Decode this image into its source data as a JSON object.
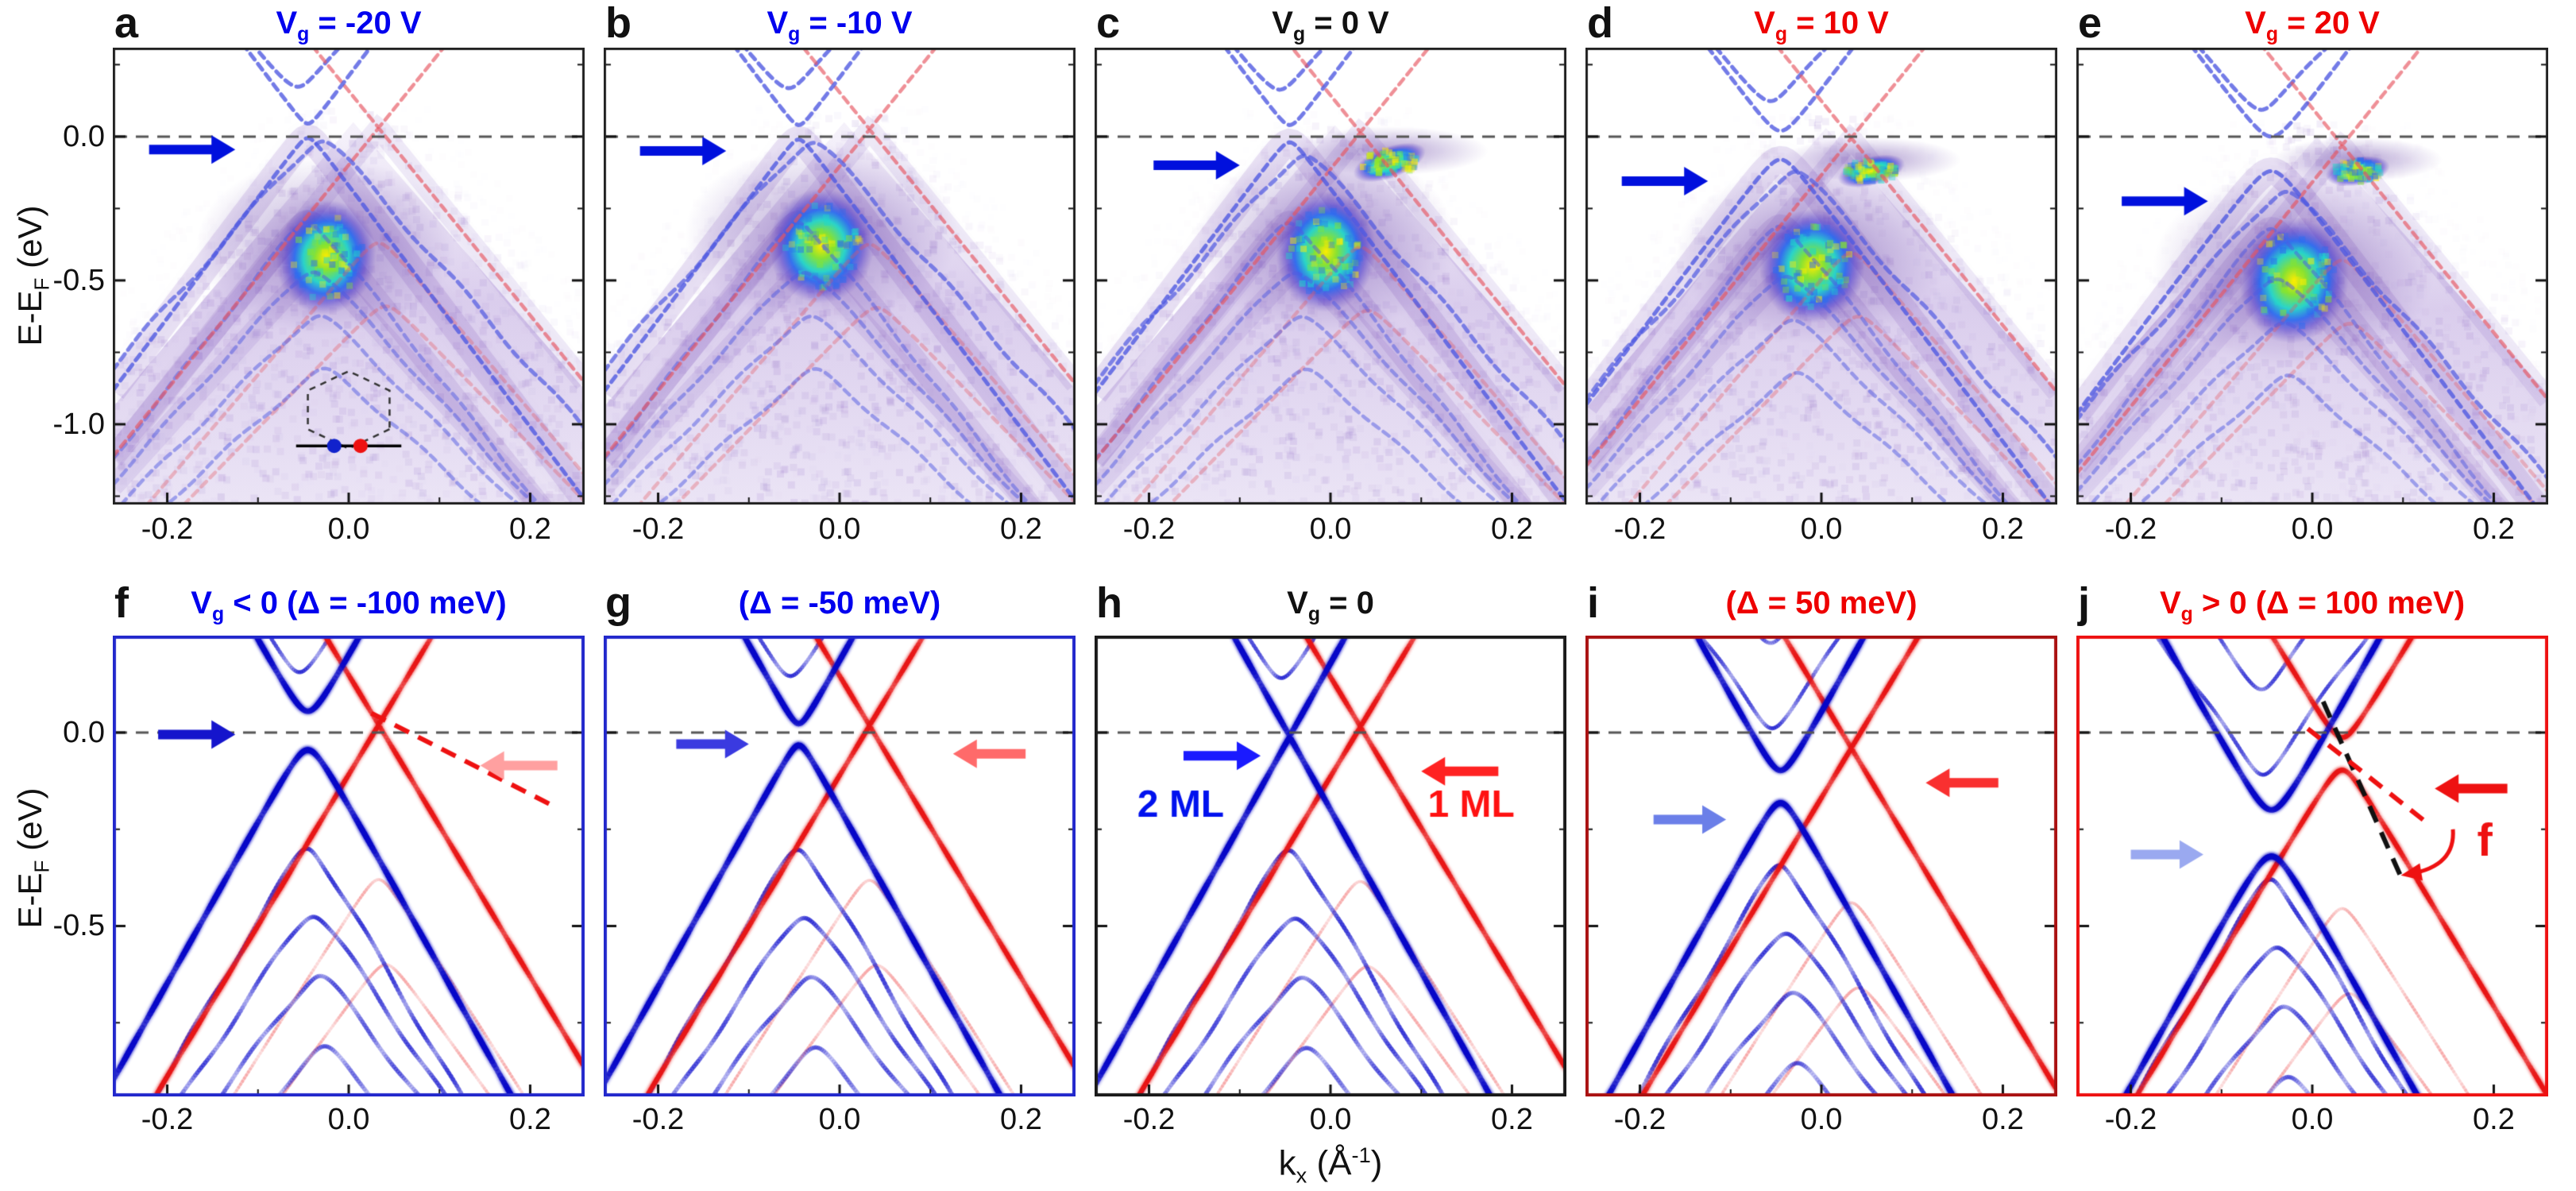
{
  "figure": {
    "y_axis_label": {
      "main": "E-E",
      "sub": "F",
      "rest": " (eV)"
    },
    "x_axis_label": {
      "main": "k",
      "sub": "x",
      "rest1": " (Å",
      "sup": "-1",
      "rest2": ")"
    },
    "x_tick_labels": [
      "-0.2",
      "0.0",
      "0.2"
    ],
    "x_tick_values": [
      -0.2,
      0.0,
      0.2
    ],
    "top_row_y_ticks": {
      "labels": [
        "0.0",
        "-0.5",
        "-1.0"
      ],
      "values": [
        0.0,
        -0.5,
        -1.0
      ]
    },
    "bottom_row_y_ticks": {
      "labels": [
        "0.0",
        "-0.5"
      ],
      "values": [
        0.0,
        -0.5
      ]
    }
  },
  "chart_data": {
    "type": "heatmap",
    "description": "ARPES spectra (top row a-e, measured at gate voltages) and simulated spectral functions (bottom row f-j) of 1ML/2ML Dirac bands vs kx; energy axis E-EF (eV).",
    "x_range": [
      -0.26,
      0.26
    ],
    "top_e_range": [
      0.309,
      -1.279
    ],
    "bottom_e_range": [
      0.2505,
      -0.9405
    ],
    "intensity_colormap": [
      "#ffffff",
      "#9d7fd4",
      "#4433cc",
      "#00ccee",
      "#55dd22",
      "#ffee00"
    ],
    "model": {
      "blue_k0": -0.045,
      "blue_v": 4.2,
      "red_k0": 0.033,
      "red_v": 3.9,
      "blue_valence_subbands": [
        {
          "dE": -0.3,
          "v": 4.0
        },
        {
          "dE": -0.47,
          "v": 3.5
        },
        {
          "dE": -0.63,
          "v": 3.15
        },
        {
          "dE": -0.82,
          "v": 2.85
        }
      ],
      "blue_conduction_subbands": [
        {
          "dE": 0.16,
          "v": 3.35
        },
        {
          "dE": 0.38,
          "v": 3.2
        }
      ],
      "red_valence_subbands": [
        {
          "dE": -0.4,
          "v": 3.7
        },
        {
          "dE": -0.62,
          "v": 3.25
        }
      ]
    },
    "panels": [
      {
        "id": "a",
        "row": 0,
        "kind": "arpes",
        "letter": "a",
        "title": {
          "color": "#0000ee",
          "segments": [
            {
              "t": "V",
              "b": true
            },
            {
              "t": "g",
              "sub": true,
              "b": true
            },
            {
              "t": " = -20 V",
              "b": true
            }
          ]
        },
        "frame": {
          "color": "#222222",
          "width": 3
        },
        "blue": {
          "E0": 0.02,
          "g": 0.025
        },
        "red": {
          "E0": 0.03,
          "g": 0.0
        },
        "pointer_band": {
          "apexE": -0.01,
          "k0": -0.03,
          "v": 3.6
        },
        "haze": {
          "apexE": 0.0
        },
        "hotspots": [
          {
            "k": -0.025,
            "E": -0.42,
            "rk": 0.055,
            "rE": 0.2,
            "rot": 10
          }
        ],
        "arrows": [
          {
            "dir": 1,
            "tipK": -0.125,
            "E": -0.045,
            "color": "#0010dd",
            "lenK": 0.095
          }
        ],
        "annotations": [],
        "inset": {
          "center": [
            0.0,
            -0.95
          ],
          "rk": 0.052,
          "lineE": -1.075,
          "lineK": [
            -0.058,
            0.058
          ],
          "dots": [
            {
              "k": -0.016,
              "color": "#1122cc"
            },
            {
              "k": 0.013,
              "color": "#ee1111"
            }
          ]
        }
      },
      {
        "id": "b",
        "row": 0,
        "kind": "arpes",
        "letter": "b",
        "title": {
          "color": "#0000ee",
          "segments": [
            {
              "t": "V",
              "b": true
            },
            {
              "t": "g",
              "sub": true,
              "b": true
            },
            {
              "t": " = -10 V",
              "b": true
            }
          ]
        },
        "frame": {
          "color": "#222222",
          "width": 3
        },
        "blue": {
          "E0": 0.015,
          "g": 0.025
        },
        "red": {
          "E0": 0.025,
          "g": 0.0
        },
        "pointer_band": {
          "apexE": -0.015,
          "k0": -0.03,
          "v": 3.6
        },
        "haze": {
          "apexE": 0.0
        },
        "hotspots": [
          {
            "k": -0.02,
            "E": -0.38,
            "rk": 0.058,
            "rE": 0.2,
            "rot": 6
          }
        ],
        "arrows": [
          {
            "dir": 1,
            "tipK": -0.125,
            "E": -0.05,
            "color": "#0010dd",
            "lenK": 0.095
          }
        ],
        "annotations": []
      },
      {
        "id": "c",
        "row": 0,
        "kind": "arpes",
        "letter": "c",
        "title": {
          "color": "#111111",
          "segments": [
            {
              "t": "V",
              "b": true
            },
            {
              "t": "g",
              "sub": true,
              "b": true
            },
            {
              "t": " = 0 V",
              "b": true
            }
          ]
        },
        "frame": {
          "color": "#222222",
          "width": 3
        },
        "blue": {
          "E0": 0.01,
          "g": 0.03
        },
        "red": {
          "E0": 0.015,
          "g": 0.0
        },
        "pointer_band": {
          "apexE": -0.06,
          "k0": -0.03,
          "v": 3.6
        },
        "haze": {
          "apexE": -0.01
        },
        "hotspots": [
          {
            "k": -0.005,
            "E": -0.4,
            "rk": 0.055,
            "rE": 0.21,
            "rot": 4
          },
          {
            "k": 0.065,
            "E": -0.09,
            "rk": 0.042,
            "rE": 0.055,
            "rot": -20
          }
        ],
        "arrows": [
          {
            "dir": 1,
            "tipK": -0.1,
            "E": -0.1,
            "color": "#0010dd",
            "lenK": 0.095
          }
        ],
        "annotations": []
      },
      {
        "id": "d",
        "row": 0,
        "kind": "arpes",
        "letter": "d",
        "title": {
          "color": "#ee0000",
          "segments": [
            {
              "t": "V",
              "b": true
            },
            {
              "t": "g",
              "sub": true,
              "b": true
            },
            {
              "t": " = 10 V",
              "b": true
            }
          ]
        },
        "frame": {
          "color": "#222222",
          "width": 3
        },
        "blue": {
          "E0": -0.03,
          "g": 0.05
        },
        "red": {
          "E0": -0.005,
          "g": 0.0
        },
        "pointer_band": {
          "apexE": -0.115,
          "k0": -0.03,
          "v": 3.6
        },
        "haze": {
          "apexE": -0.02
        },
        "hotspots": [
          {
            "k": -0.01,
            "E": -0.45,
            "rk": 0.058,
            "rE": 0.2,
            "rot": 10
          },
          {
            "k": 0.055,
            "E": -0.12,
            "rk": 0.038,
            "rE": 0.05,
            "rot": -15
          }
        ],
        "arrows": [
          {
            "dir": 1,
            "tipK": -0.125,
            "E": -0.155,
            "color": "#0010dd",
            "lenK": 0.095
          }
        ],
        "annotations": []
      },
      {
        "id": "e",
        "row": 0,
        "kind": "arpes",
        "letter": "e",
        "title": {
          "color": "#ee0000",
          "segments": [
            {
              "t": "V",
              "b": true
            },
            {
              "t": "g",
              "sub": true,
              "b": true
            },
            {
              "t": " = 20 V",
              "b": true
            }
          ]
        },
        "frame": {
          "color": "#222222",
          "width": 3
        },
        "blue": {
          "E0": -0.06,
          "g": 0.06
        },
        "red": {
          "E0": -0.03,
          "g": 0.0
        },
        "pointer_band": {
          "apexE": -0.185,
          "k0": -0.03,
          "v": 3.6
        },
        "haze": {
          "apexE": -0.05
        },
        "hotspots": [
          {
            "k": -0.02,
            "E": -0.5,
            "rk": 0.06,
            "rE": 0.22,
            "rot": 12
          },
          {
            "k": 0.05,
            "E": -0.12,
            "rk": 0.036,
            "rE": 0.05,
            "rot": -10
          }
        ],
        "arrows": [
          {
            "dir": 1,
            "tipK": -0.115,
            "E": -0.225,
            "color": "#0010dd",
            "lenK": 0.095
          }
        ],
        "annotations": []
      },
      {
        "id": "f",
        "row": 1,
        "kind": "sim",
        "letter": "f",
        "title": {
          "color": "#0000ee",
          "segments": [
            {
              "t": "V",
              "b": true
            },
            {
              "t": "g",
              "sub": true,
              "b": true
            },
            {
              "t": " < 0  ",
              "b": true
            },
            {
              "t": "(Δ = -100 meV)",
              "b": false
            }
          ]
        },
        "frame": {
          "color": "#2228cc",
          "width": 4
        },
        "blue": {
          "E0": 0.005,
          "g": 0.05
        },
        "red": {
          "E0": 0.02,
          "g": 0.0
        },
        "arrows": [
          {
            "dir": 1,
            "tipK": -0.125,
            "E": -0.005,
            "color": "#1515cc",
            "lenK": 0.085
          },
          {
            "dir": -1,
            "tipK": 0.145,
            "E": -0.085,
            "color": "#ffa0a0",
            "lenK": 0.085
          }
        ],
        "annotations": [
          {
            "type": "dline",
            "from": [
              0.025,
              0.05
            ],
            "to": [
              0.23,
              -0.195
            ],
            "color": "#ee1111",
            "width": 6,
            "dash": [
              20,
              13
            ]
          }
        ]
      },
      {
        "id": "g",
        "row": 1,
        "kind": "sim",
        "letter": "g",
        "title": {
          "color": "#0000ee",
          "segments": [
            {
              "t": "(Δ = -50 meV)",
              "b": false
            }
          ]
        },
        "frame": {
          "color": "#2228cc",
          "width": 4
        },
        "blue": {
          "E0": -0.005,
          "g": 0.028
        },
        "red": {
          "E0": 0.018,
          "g": 0.0
        },
        "arrows": [
          {
            "dir": 1,
            "tipK": -0.1,
            "E": -0.03,
            "color": "#3a3ae0",
            "lenK": 0.08
          },
          {
            "dir": -1,
            "tipK": 0.125,
            "E": -0.055,
            "color": "#ff6a6a",
            "lenK": 0.08
          }
        ],
        "annotations": []
      },
      {
        "id": "h",
        "row": 1,
        "kind": "sim",
        "letter": "h",
        "title": {
          "color": "#111111",
          "segments": [
            {
              "t": "V",
              "b": true
            },
            {
              "t": "g",
              "sub": true,
              "b": true
            },
            {
              "t": " = 0",
              "b": true
            }
          ]
        },
        "frame": {
          "color": "#1a1a1a",
          "width": 4
        },
        "blue": {
          "E0": -0.01,
          "g": 0.004
        },
        "red": {
          "E0": 0.015,
          "g": 0.0
        },
        "arrows": [
          {
            "dir": 1,
            "tipK": -0.077,
            "E": -0.06,
            "color": "#1a1aff",
            "lenK": 0.085
          },
          {
            "dir": -1,
            "tipK": 0.1,
            "E": -0.1,
            "color": "#ff2222",
            "lenK": 0.085
          }
        ],
        "annotations": [
          {
            "type": "text",
            "text": "2 ML",
            "k": -0.165,
            "E": -0.19,
            "color": "#0011ee",
            "size": 48,
            "bold": true
          },
          {
            "type": "text",
            "text": "1 ML",
            "k": 0.155,
            "E": -0.19,
            "color": "#ff1111",
            "size": 48,
            "bold": true
          }
        ]
      },
      {
        "id": "i",
        "row": 1,
        "kind": "sim",
        "letter": "i",
        "title": {
          "color": "#ee0000",
          "segments": [
            {
              "t": "(Δ = 50 meV)",
              "b": false
            }
          ]
        },
        "frame": {
          "color": "#aa1111",
          "width": 4
        },
        "blue": {
          "E0": -0.14,
          "g": 0.042
        },
        "red": {
          "E0": -0.04,
          "g": 0.0
        },
        "arrows": [
          {
            "dir": 1,
            "tipK": -0.105,
            "E": -0.225,
            "color": "#6b7fe8",
            "lenK": 0.08
          },
          {
            "dir": -1,
            "tipK": 0.115,
            "E": -0.13,
            "color": "#f93030",
            "lenK": 0.08
          }
        ],
        "annotations": []
      },
      {
        "id": "j",
        "row": 1,
        "kind": "sim",
        "letter": "j",
        "title": {
          "color": "#ee0000",
          "segments": [
            {
              "t": "V",
              "b": true
            },
            {
              "t": "g",
              "sub": true,
              "b": true
            },
            {
              "t": " > 0  ",
              "b": true
            },
            {
              "t": "(Δ = 100 meV)",
              "b": false
            }
          ]
        },
        "frame": {
          "color": "#ee1111",
          "width": 4
        },
        "blue": {
          "E0": -0.26,
          "g": 0.06
        },
        "red": {
          "E0": -0.055,
          "g": 0.042
        },
        "arrows": [
          {
            "dir": 1,
            "tipK": -0.12,
            "E": -0.315,
            "color": "#9aa9f0",
            "lenK": 0.08
          },
          {
            "dir": -1,
            "tipK": 0.135,
            "E": -0.145,
            "color": "#ee1111",
            "lenK": 0.08
          }
        ],
        "annotations": [
          {
            "type": "dline",
            "from": [
              0.012,
              0.08
            ],
            "to": [
              0.1,
              -0.385
            ],
            "color": "#111111",
            "width": 6,
            "dash": [
              22,
              14
            ]
          },
          {
            "type": "dline",
            "from": [
              -0.005,
              0.01
            ],
            "to": [
              0.13,
              -0.24
            ],
            "color": "#ee1111",
            "width": 6,
            "dash": [
              20,
              13
            ]
          },
          {
            "type": "arcarrow",
            "from": [
              0.155,
              -0.25
            ],
            "ctrl": [
              0.158,
              -0.345
            ],
            "to": [
              0.108,
              -0.365
            ],
            "color": "#ee1111",
            "width": 5
          },
          {
            "type": "text",
            "text": "f",
            "k": 0.19,
            "E": -0.285,
            "color": "#ee1111",
            "size": 58,
            "bold": true
          }
        ]
      }
    ]
  }
}
